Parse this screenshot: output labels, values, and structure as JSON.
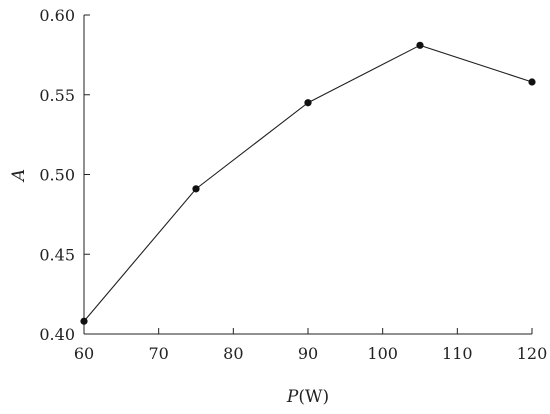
{
  "chart_data": {
    "type": "line",
    "xlabel": {
      "symbol": "P",
      "unit": "(W)"
    },
    "ylabel": "A",
    "xlim": [
      60,
      120
    ],
    "ylim": [
      0.4,
      0.6
    ],
    "x_ticks": [
      "60",
      "70",
      "80",
      "90",
      "100",
      "110",
      "120"
    ],
    "y_ticks": [
      "0.40",
      "0.45",
      "0.50",
      "0.55",
      "0.60"
    ],
    "x_tick_values": [
      60,
      70,
      80,
      90,
      100,
      110,
      120
    ],
    "y_tick_values": [
      0.4,
      0.45,
      0.5,
      0.55,
      0.6
    ],
    "series": [
      {
        "x": [
          60,
          75,
          90,
          105,
          120
        ],
        "y": [
          0.408,
          0.491,
          0.545,
          0.581,
          0.558
        ]
      }
    ],
    "grid": false,
    "colors": {
      "line": "#222222",
      "marker": "#111111"
    }
  }
}
